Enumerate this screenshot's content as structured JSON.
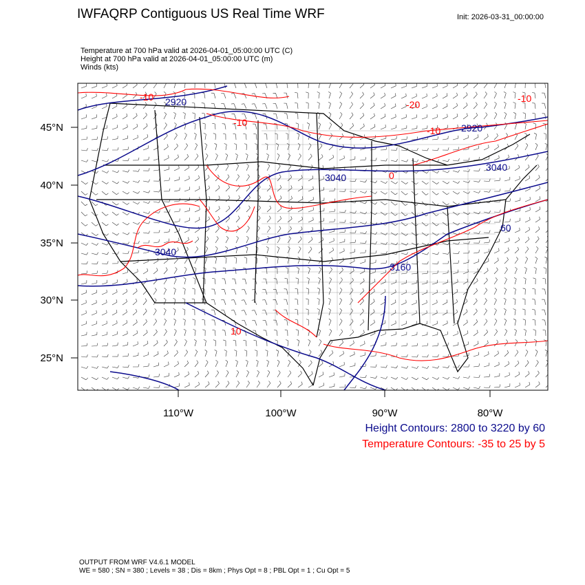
{
  "header": {
    "title": "IWFAQRP Contiguous US Real Time WRF",
    "init": "Init: 2026-03-31_00:00:00"
  },
  "subtitles": {
    "line1": "Temperature at 700 hPa valid at 2026-04-01_05:00:00 UTC   (C)",
    "line2": "Height at 700 hPa valid at 2026-04-01_05:00:00 UTC   (m)",
    "line3": "Winds   (kts)"
  },
  "map": {
    "lat_labels": [
      "45°N",
      "40°N",
      "35°N",
      "30°N",
      "25°N"
    ],
    "lon_labels": [
      "110°W",
      "100°W",
      "90°W",
      "80°W"
    ],
    "height_contour_labels": [
      "2920",
      "2920",
      "3040",
      "3040",
      "3040",
      "3160",
      "60"
    ],
    "temp_contour_labels": [
      "-10",
      "-10",
      "-20",
      "-10",
      "-10",
      "0",
      "10"
    ],
    "colors": {
      "height": "#0a0a8c",
      "temperature": "#ff0000",
      "borders": "#000000"
    }
  },
  "legend": {
    "height": "Height Contours: 2800 to 3220 by 60",
    "temperature": "Temperature Contours: -35 to 25 by 5"
  },
  "footer": {
    "line1": "OUTPUT FROM WRF V4.6.1 MODEL",
    "line2": "WE = 580 ; SN = 380 ; Levels = 38 ; Dis = 8km ; Phys Opt = 8 ; PBL Opt = 1 ; Cu Opt = 5"
  }
}
